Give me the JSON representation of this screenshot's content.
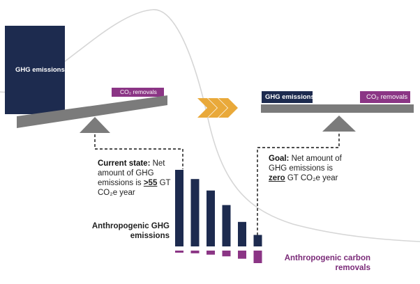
{
  "left_scale": {
    "emissions_label": "GHG emissions",
    "removals_label": "CO₂ removals"
  },
  "right_scale": {
    "emissions_label": "GHG emissions",
    "removals_label": "CO₂ removals"
  },
  "current_state": {
    "title": "Current state:",
    "line1": "Net",
    "line2": "amount of GHG",
    "line3_prefix": "emissions is",
    "value": ">55",
    "line3_suffix": "GT",
    "line4": "CO₂e year"
  },
  "goal": {
    "title": "Goal:",
    "line1": "Net amount of",
    "line2": "GHG emissions is",
    "value": "zero",
    "line3_suffix": "GT CO₂e year"
  },
  "bars": {
    "emissions_label_line1": "Anthropogenic GHG",
    "emissions_label_line2": "emissions",
    "removals_label_line1": "Anthropogenic carbon",
    "removals_label_line2": "removals",
    "emissions": [
      1.0,
      0.88,
      0.73,
      0.54,
      0.32,
      0.15
    ],
    "removals": [
      0.05,
      0.08,
      0.12,
      0.17,
      0.24,
      0.37
    ]
  },
  "colors": {
    "navy": "#1d2b4f",
    "purple": "#8b3585",
    "gray": "#7b7b7b",
    "arrow": "#e9a93a",
    "curve": "#d6d6d6"
  }
}
